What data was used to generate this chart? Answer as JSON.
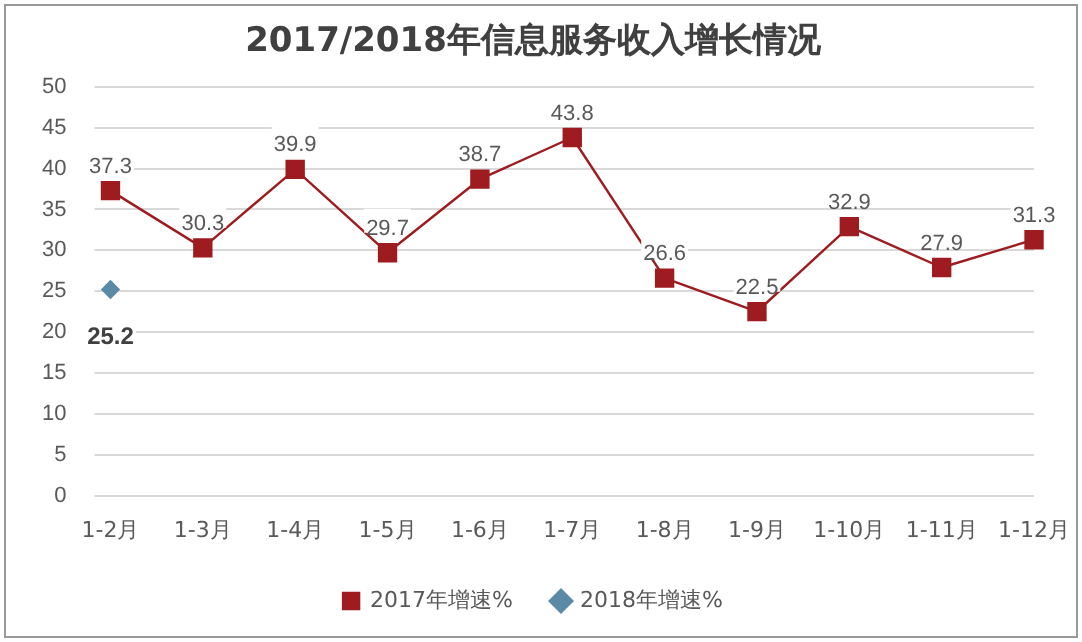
{
  "chart_data": {
    "type": "line",
    "title": "2017/2018年信息服务收入增长情况",
    "categories": [
      "1-2月",
      "1-3月",
      "1-4月",
      "1-5月",
      "1-6月",
      "1-7月",
      "1-8月",
      "1-9月",
      "1-10月",
      "1-11月",
      "1-12月"
    ],
    "series": [
      {
        "name": "2017年增速%",
        "color": "#9e1b20",
        "marker": "square",
        "values": [
          37.3,
          30.3,
          39.9,
          29.7,
          38.7,
          43.8,
          26.6,
          22.5,
          32.9,
          27.9,
          31.3
        ]
      },
      {
        "name": "2018年增速%",
        "color": "#5b8aa6",
        "marker": "diamond",
        "values": [
          25.2,
          null,
          null,
          null,
          null,
          null,
          null,
          null,
          null,
          null,
          null
        ]
      }
    ],
    "ylim": [
      0,
      50
    ],
    "yticks": [
      0,
      5,
      10,
      15,
      20,
      25,
      30,
      35,
      40,
      45,
      50
    ],
    "grid": "y",
    "legend": "bottom",
    "data_labels": true
  }
}
